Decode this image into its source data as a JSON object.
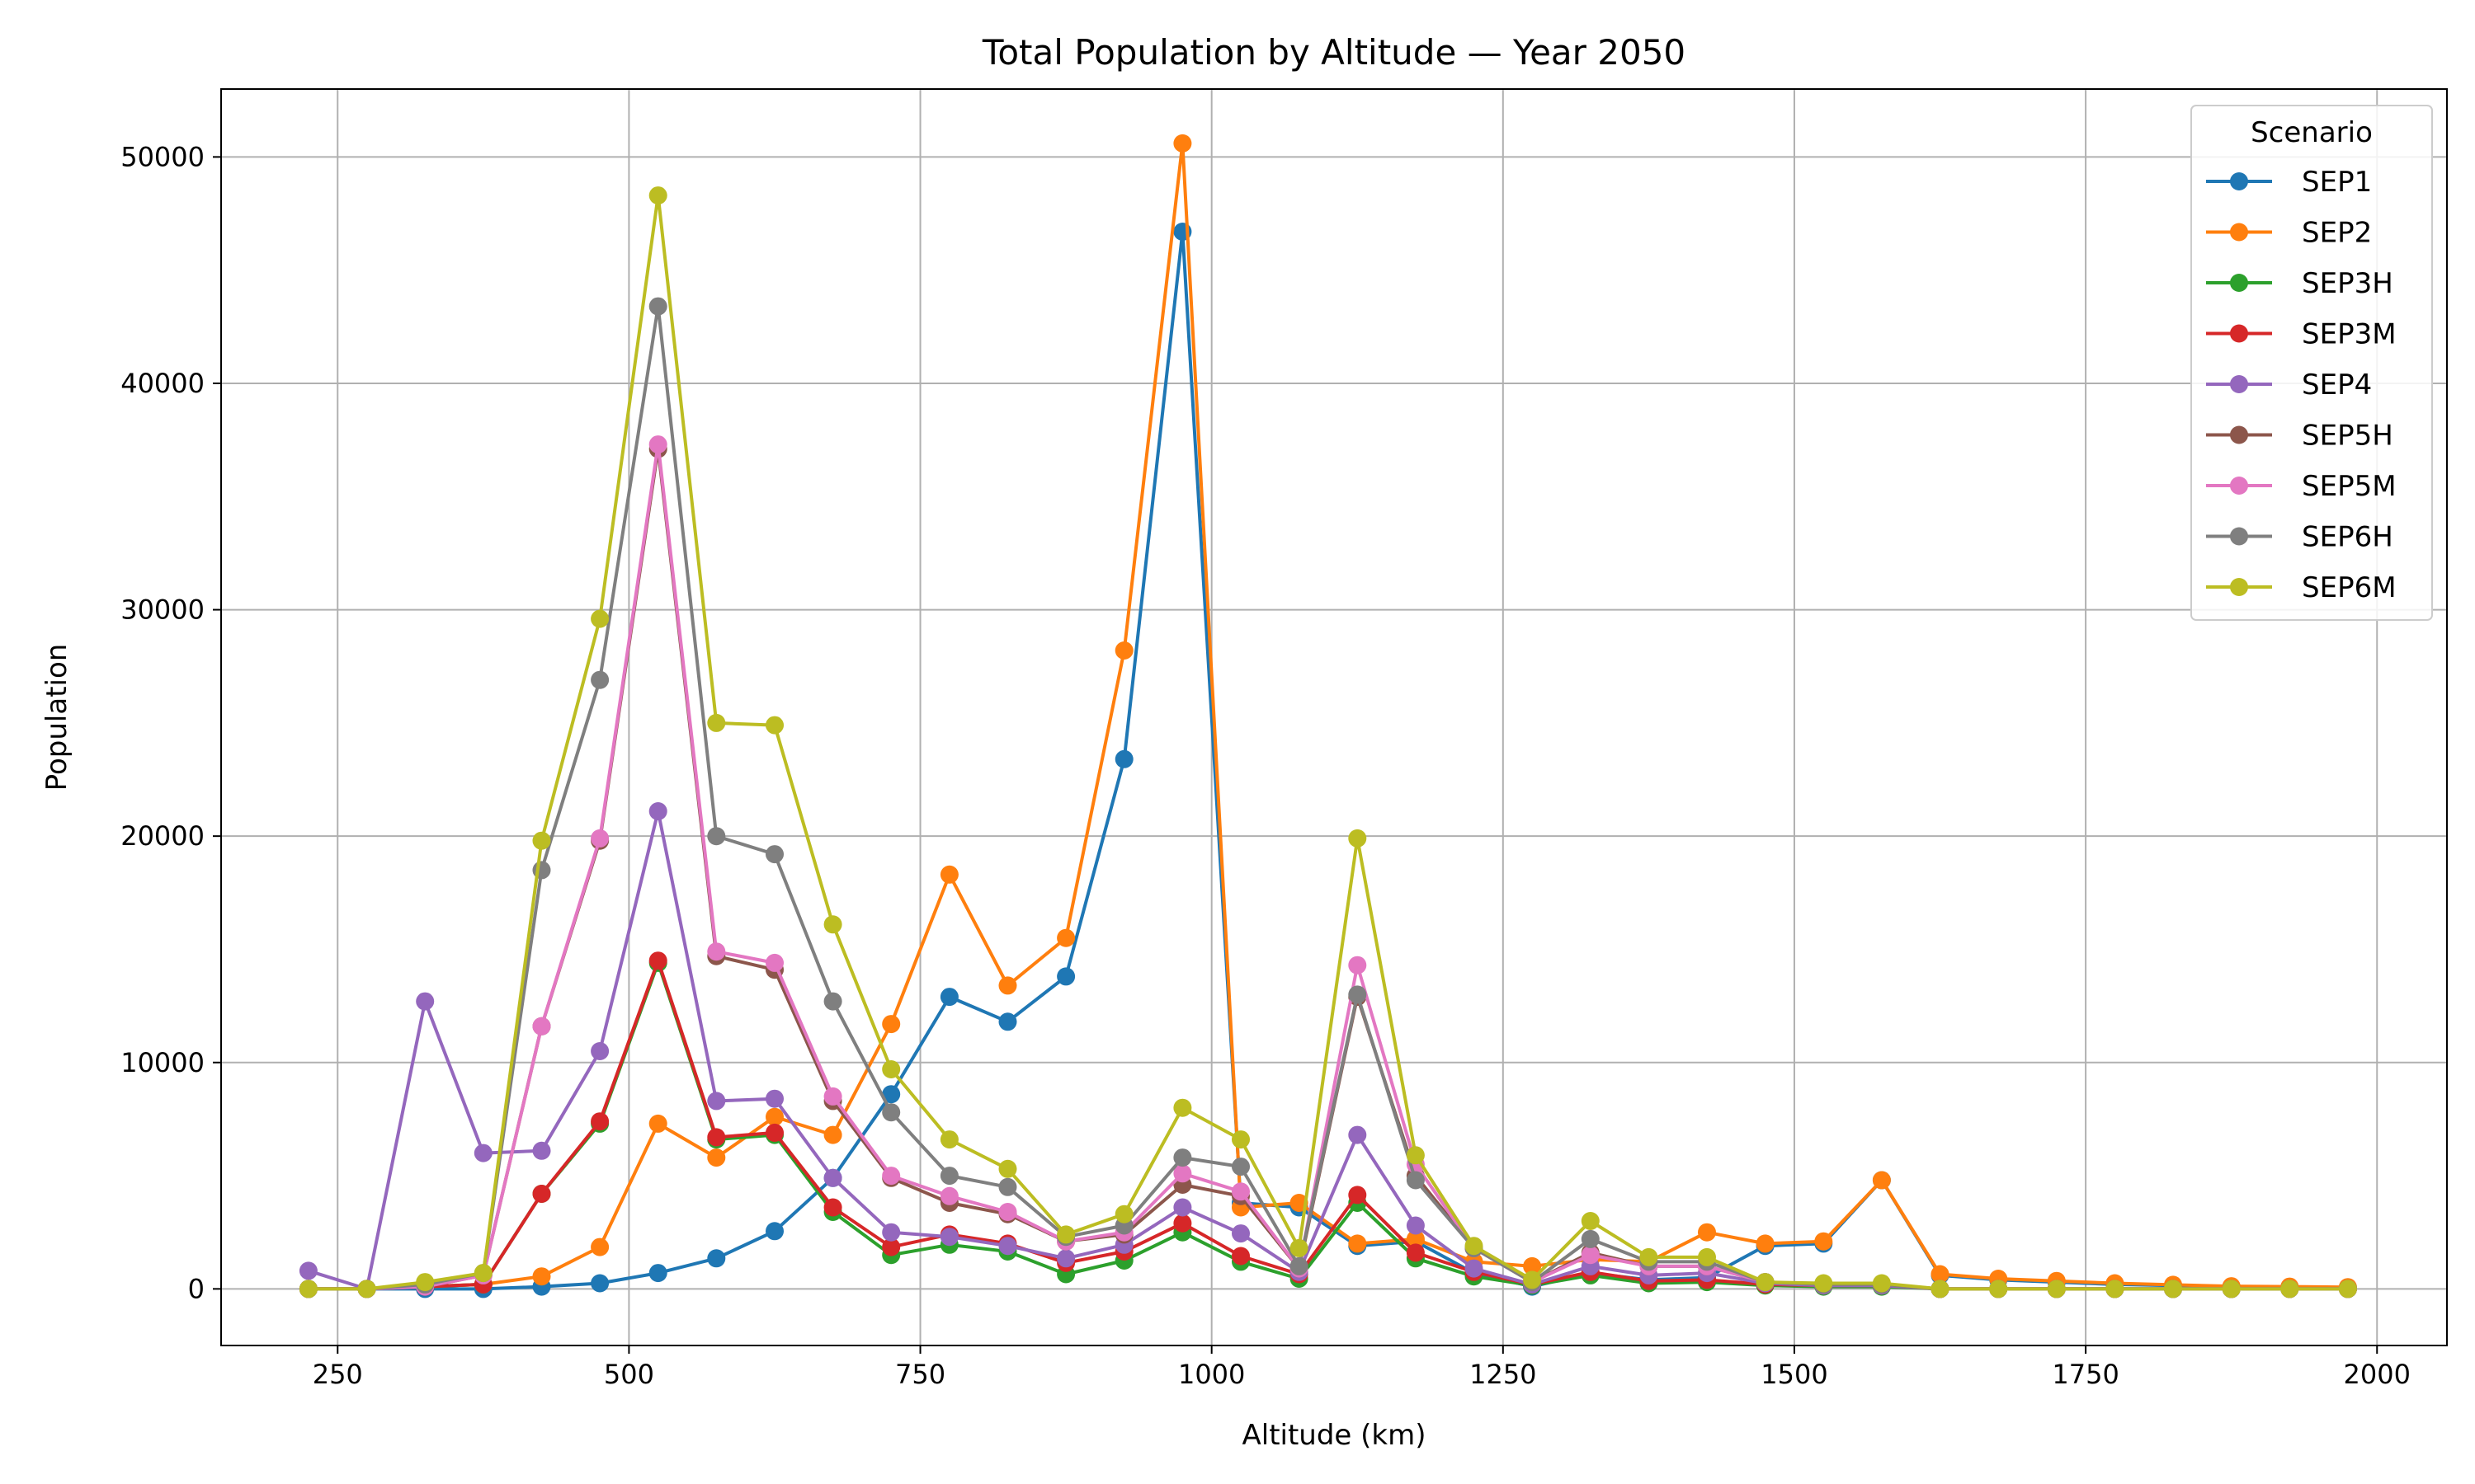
{
  "chart_data": {
    "type": "line",
    "title": "Total Population by Altitude — Year 2050",
    "xlabel": "Altitude (km)",
    "ylabel": "Population",
    "xlim": [
      150,
      2060
    ],
    "ylim": [
      -2500,
      53000
    ],
    "xticks": [
      250,
      500,
      750,
      1000,
      1250,
      1500,
      1750,
      2000
    ],
    "yticks": [
      0,
      10000,
      20000,
      30000,
      40000,
      50000
    ],
    "grid": true,
    "legend": {
      "title": "Scenario",
      "placement": "top-right"
    },
    "x": [
      225,
      275,
      325,
      375,
      425,
      475,
      525,
      575,
      625,
      675,
      725,
      775,
      825,
      875,
      925,
      975,
      1025,
      1075,
      1125,
      1175,
      1225,
      1275,
      1325,
      1375,
      1425,
      1475,
      1525,
      1575,
      1625,
      1675,
      1725,
      1775,
      1825,
      1875,
      1925,
      1975
    ],
    "series": [
      {
        "name": "SEP1",
        "color": "#1f77b4",
        "values": [
          0,
          0,
          0,
          0,
          100,
          250,
          700,
          1350,
          2550,
          4900,
          8600,
          12900,
          11800,
          13800,
          23400,
          46700,
          3800,
          3600,
          1900,
          2100,
          700,
          100,
          700,
          400,
          500,
          1900,
          2000,
          4800,
          600,
          400,
          300,
          200,
          150,
          100,
          80,
          60
        ]
      },
      {
        "name": "SEP2",
        "color": "#ff7f0e",
        "values": [
          0,
          0,
          100,
          200,
          550,
          1850,
          7300,
          5800,
          7600,
          6800,
          11700,
          18300,
          13400,
          15500,
          28200,
          50600,
          3600,
          3800,
          2000,
          2200,
          1200,
          1000,
          1300,
          1200,
          2500,
          2000,
          2100,
          4800,
          650,
          450,
          350,
          250,
          180,
          120,
          100,
          80
        ]
      },
      {
        "name": "SEP3H",
        "color": "#2ca02c",
        "values": [
          0,
          0,
          100,
          200,
          4200,
          7300,
          14400,
          6600,
          6800,
          3400,
          1500,
          1950,
          1650,
          650,
          1250,
          2500,
          1200,
          450,
          3800,
          1350,
          550,
          150,
          600,
          250,
          300,
          150,
          100,
          100,
          0,
          0,
          0,
          0,
          0,
          0,
          0,
          0
        ]
      },
      {
        "name": "SEP3M",
        "color": "#d62728",
        "values": [
          0,
          0,
          100,
          200,
          4200,
          7400,
          14500,
          6700,
          6900,
          3600,
          1850,
          2400,
          2000,
          1150,
          1650,
          2900,
          1450,
          650,
          4150,
          1600,
          750,
          200,
          750,
          350,
          400,
          200,
          150,
          150,
          0,
          0,
          0,
          0,
          0,
          0,
          0,
          0
        ]
      },
      {
        "name": "SEP4",
        "color": "#9467bd",
        "values": [
          800,
          0,
          12700,
          6000,
          6100,
          10500,
          21100,
          8300,
          8400,
          4900,
          2500,
          2300,
          1900,
          1350,
          1950,
          3600,
          2450,
          750,
          6800,
          2800,
          900,
          200,
          1000,
          600,
          700,
          250,
          150,
          150,
          0,
          0,
          0,
          0,
          0,
          0,
          0,
          0
        ]
      },
      {
        "name": "SEP5H",
        "color": "#8c564b",
        "values": [
          0,
          0,
          100,
          600,
          11600,
          19800,
          37100,
          14700,
          14100,
          8300,
          4900,
          3800,
          3300,
          2100,
          2400,
          4600,
          4100,
          900,
          12900,
          5000,
          1800,
          300,
          1600,
          1000,
          1000,
          300,
          200,
          200,
          0,
          0,
          0,
          0,
          0,
          0,
          0,
          0
        ]
      },
      {
        "name": "SEP5M",
        "color": "#e377c2",
        "values": [
          0,
          0,
          100,
          600,
          11600,
          19900,
          37300,
          14900,
          14400,
          8500,
          5000,
          4100,
          3400,
          2100,
          2500,
          5100,
          4300,
          900,
          14300,
          5500,
          1800,
          300,
          1500,
          1000,
          1000,
          300,
          200,
          200,
          0,
          0,
          0,
          0,
          0,
          0,
          0,
          0
        ]
      },
      {
        "name": "SEP6H",
        "color": "#7f7f7f",
        "values": [
          0,
          0,
          200,
          700,
          18500,
          26900,
          43400,
          20000,
          19200,
          12700,
          7800,
          5000,
          4500,
          2300,
          2800,
          5800,
          5400,
          1000,
          13000,
          4800,
          1800,
          300,
          2200,
          1200,
          1200,
          300,
          200,
          200,
          0,
          0,
          0,
          0,
          0,
          0,
          0,
          0
        ]
      },
      {
        "name": "SEP6M",
        "color": "#bcbd22",
        "values": [
          0,
          0,
          300,
          700,
          19800,
          29600,
          48300,
          25000,
          24900,
          16100,
          9700,
          6600,
          5300,
          2400,
          3300,
          8000,
          6600,
          1800,
          19900,
          5900,
          1900,
          400,
          3000,
          1400,
          1400,
          300,
          250,
          250,
          0,
          0,
          0,
          0,
          0,
          0,
          0,
          0
        ]
      }
    ]
  }
}
